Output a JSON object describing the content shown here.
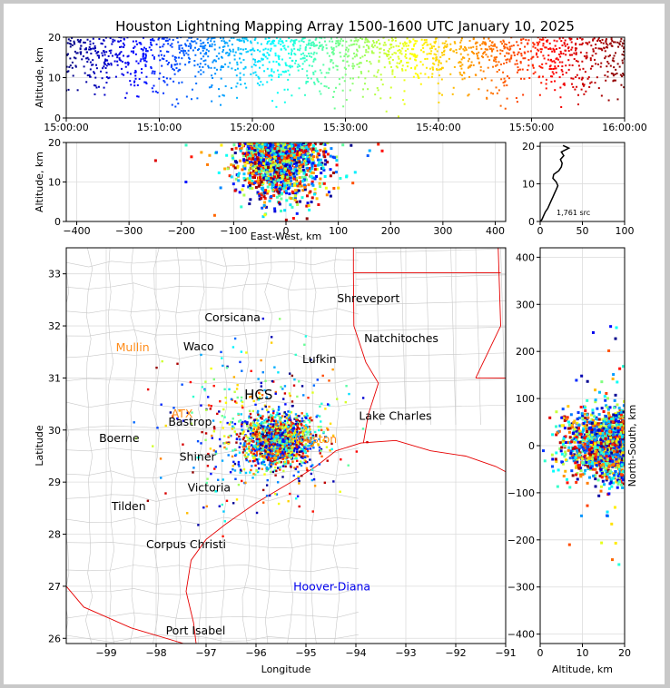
{
  "title": "Houston Lightning Mapping Array 1500-1600 UTC January 10, 2025",
  "chart_data": [
    {
      "id": "time-height",
      "type": "scatter",
      "ylabel": "Altitude, km",
      "xlim": [
        "15:00:00",
        "16:00:00"
      ],
      "ylim": [
        0,
        20
      ],
      "xticks": [
        "15:00:00",
        "15:10:00",
        "15:20:00",
        "15:30:00",
        "15:40:00",
        "15:50:00",
        "16:00:00"
      ],
      "yticks": [
        "0",
        "10",
        "20"
      ],
      "color_by": "time",
      "grid": true
    },
    {
      "id": "east-west-height",
      "type": "scatter",
      "xlabel": "East-West, km",
      "ylabel": "Altitude, km",
      "xlim": [
        -420,
        420
      ],
      "ylim": [
        0,
        20
      ],
      "xticks": [
        "−400",
        "−300",
        "−200",
        "−100",
        "0",
        "100",
        "200",
        "300",
        "400"
      ],
      "yticks": [
        "0",
        "10",
        "20"
      ],
      "grid": true
    },
    {
      "id": "altitude-histogram",
      "type": "line",
      "xlim": [
        0,
        100
      ],
      "ylim": [
        0,
        21
      ],
      "xticks": [
        "0",
        "50",
        "100"
      ],
      "yticks": [
        "0",
        "10",
        "20"
      ],
      "source_count": "1,761 src",
      "profile": [
        [
          2,
          0.5
        ],
        [
          4,
          1.5
        ],
        [
          6,
          2.5
        ],
        [
          9,
          3.5
        ],
        [
          11,
          4.5
        ],
        [
          13,
          5.5
        ],
        [
          15,
          6.5
        ],
        [
          17,
          7.5
        ],
        [
          19,
          8.5
        ],
        [
          21,
          9.5
        ],
        [
          19,
          10.5
        ],
        [
          15,
          11.5
        ],
        [
          16,
          12.5
        ],
        [
          22,
          13.5
        ],
        [
          25,
          14.5
        ],
        [
          26,
          15.5
        ],
        [
          24,
          16.5
        ],
        [
          28,
          17.5
        ],
        [
          25,
          18.5
        ],
        [
          34,
          19.5
        ],
        [
          27,
          20.2
        ]
      ]
    },
    {
      "id": "plan-view",
      "type": "scatter",
      "xlabel": "Longitude",
      "ylabel": "Latitude",
      "xlim": [
        -99.8,
        -91
      ],
      "ylim": [
        25.9,
        33.5
      ],
      "xticks": [
        "−99",
        "−98",
        "−97",
        "−96",
        "−95",
        "−94",
        "−93",
        "−92",
        "−91"
      ],
      "yticks": [
        "26",
        "27",
        "28",
        "29",
        "30",
        "31",
        "32",
        "33"
      ],
      "cities": [
        {
          "name": "Shreveport",
          "lon": -93.75,
          "lat": 32.52
        },
        {
          "name": "Corsicana",
          "lon": -96.47,
          "lat": 32.16
        },
        {
          "name": "Natchitoches",
          "lon": -93.09,
          "lat": 31.76
        },
        {
          "name": "Waco",
          "lon": -97.15,
          "lat": 31.6
        },
        {
          "name": "Lufkin",
          "lon": -94.73,
          "lat": 31.36
        },
        {
          "name": "Lake Charles",
          "lon": -93.21,
          "lat": 30.27
        },
        {
          "name": "Bastrop",
          "lon": -97.32,
          "lat": 30.15
        },
        {
          "name": "Boerne",
          "lon": -98.74,
          "lat": 29.84
        },
        {
          "name": "Shiner",
          "lon": -97.17,
          "lat": 29.48
        },
        {
          "name": "Victoria",
          "lon": -96.94,
          "lat": 28.89
        },
        {
          "name": "Tilden",
          "lon": -98.55,
          "lat": 28.53
        },
        {
          "name": "Corpus Christi",
          "lon": -97.4,
          "lat": 27.8
        },
        {
          "name": "Port Isabel",
          "lon": -97.21,
          "lat": 26.14
        }
      ],
      "radar_sites": [
        {
          "name": "Mullin",
          "lon": -98.47,
          "lat": 31.6,
          "color": "#ff8c1a"
        },
        {
          "name": "ATX",
          "lon": -97.48,
          "lat": 30.33,
          "color": "#ff8c1a"
        },
        {
          "name": "HCS",
          "lon": -95.95,
          "lat": 30.68,
          "color": "#000000"
        },
        {
          "name": "Houston",
          "lon": -94.85,
          "lat": 29.84,
          "color": "#ff8c1a"
        },
        {
          "name": "Hoover-Diana",
          "lon": -94.48,
          "lat": 27.01,
          "color": "#0000ee"
        }
      ],
      "grid": true
    },
    {
      "id": "north-south-height",
      "type": "scatter",
      "xlabel": "Altitude, km",
      "ylabel": "North-South, km",
      "xlim": [
        0,
        20
      ],
      "ylim": [
        -420,
        420
      ],
      "xticks": [
        "0",
        "10",
        "20"
      ],
      "yticks": [
        "−400",
        "−300",
        "−200",
        "−100",
        "0",
        "100",
        "200",
        "300",
        "400"
      ],
      "grid": true
    }
  ]
}
